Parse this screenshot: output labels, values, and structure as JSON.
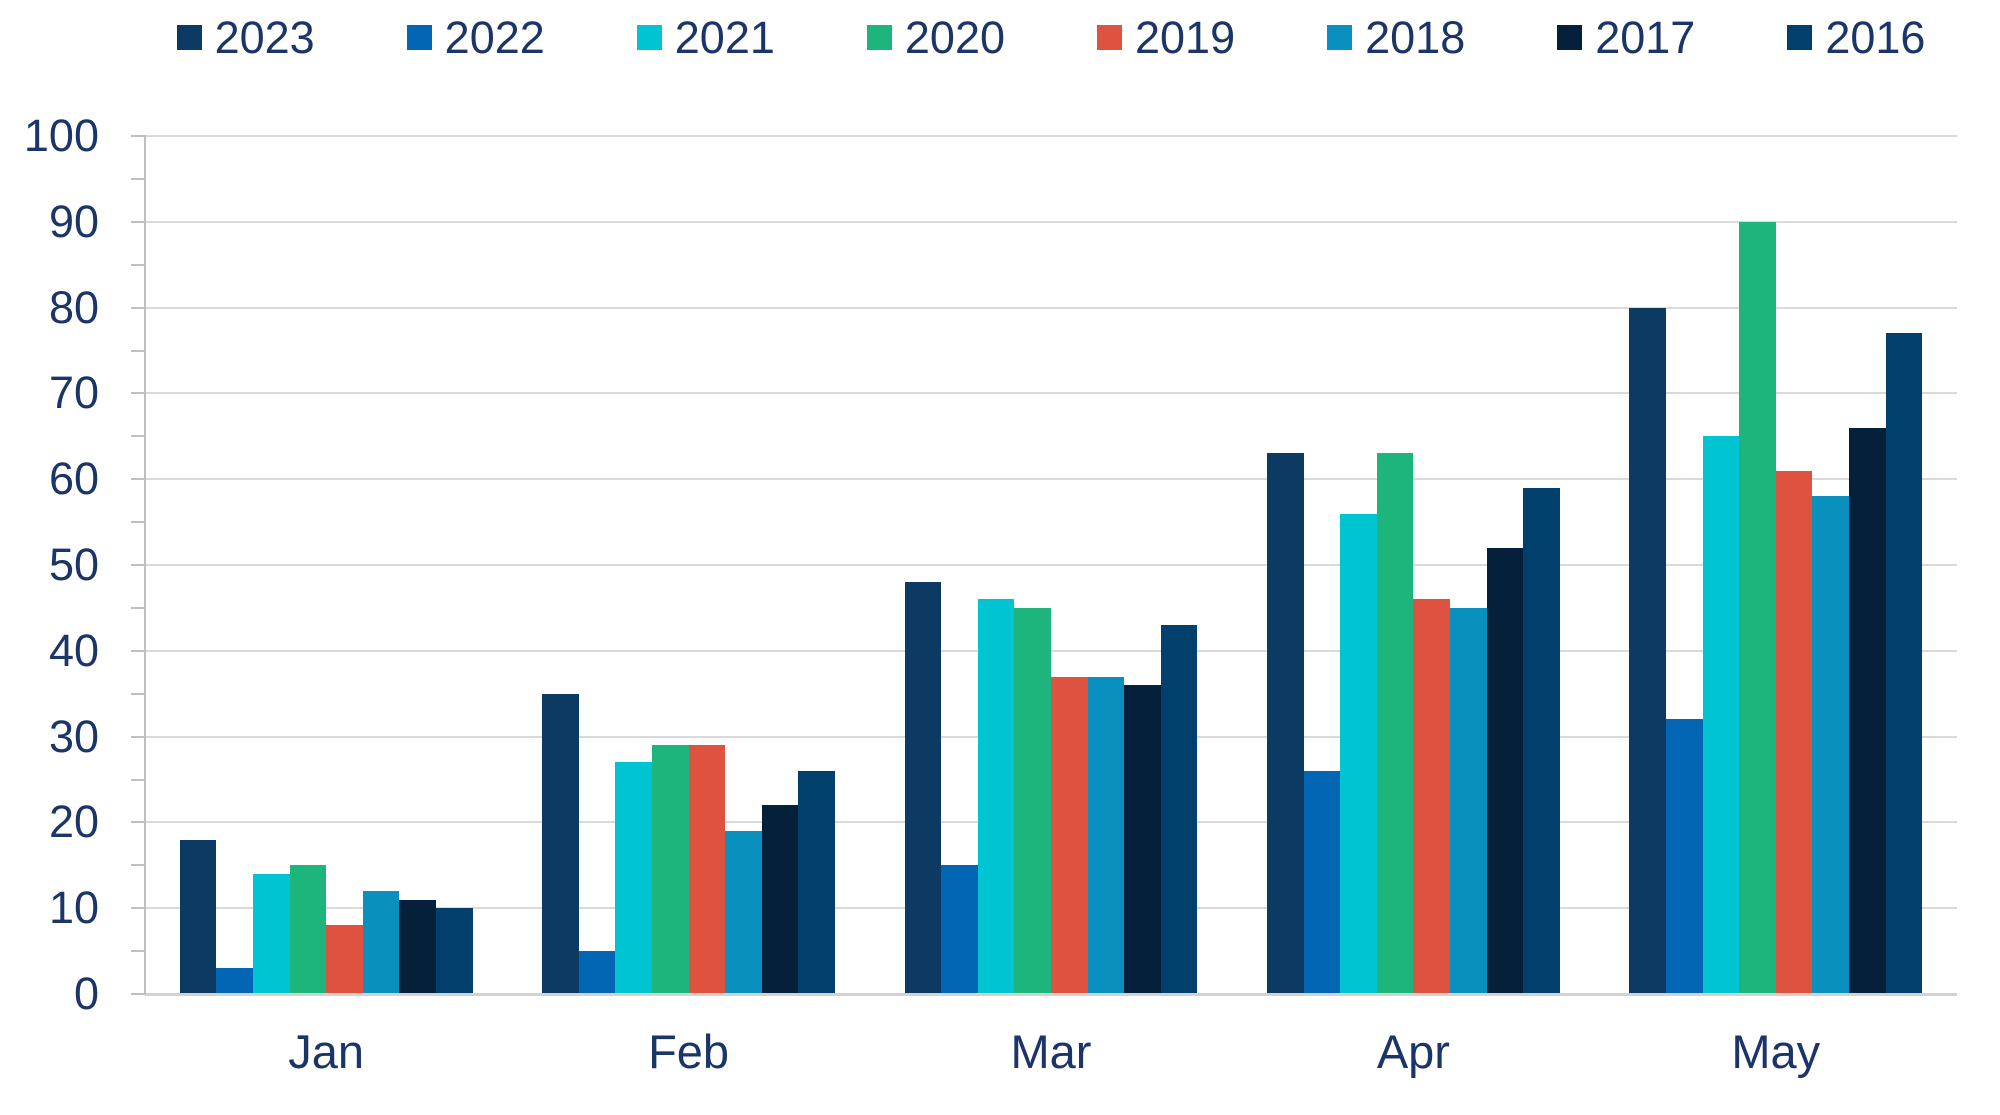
{
  "chart_data": {
    "type": "bar",
    "title": "",
    "xlabel": "",
    "ylabel": "",
    "categories": [
      "Jan",
      "Feb",
      "Mar",
      "Apr",
      "May"
    ],
    "series": [
      {
        "name": "2023",
        "color": "#0d3a62",
        "values": [
          18,
          35,
          48,
          63,
          80
        ]
      },
      {
        "name": "2022",
        "color": "#0366b4",
        "values": [
          3,
          5,
          15,
          26,
          32
        ]
      },
      {
        "name": "2021",
        "color": "#00c4d1",
        "values": [
          14,
          27,
          46,
          56,
          65
        ]
      },
      {
        "name": "2020",
        "color": "#1eb57d",
        "values": [
          15,
          29,
          45,
          63,
          90
        ]
      },
      {
        "name": "2019",
        "color": "#de5240",
        "values": [
          8,
          29,
          37,
          46,
          61
        ]
      },
      {
        "name": "2018",
        "color": "#0a90be",
        "values": [
          12,
          19,
          37,
          45,
          58
        ]
      },
      {
        "name": "2017",
        "color": "#05203a",
        "values": [
          11,
          22,
          36,
          52,
          66
        ]
      },
      {
        "name": "2016",
        "color": "#01406d",
        "values": [
          10,
          26,
          43,
          59,
          77
        ]
      }
    ],
    "ylim": [
      0,
      100
    ],
    "ytick_labels": [
      "0",
      "10",
      "20",
      "30",
      "40",
      "50",
      "60",
      "70",
      "80",
      "90",
      "100"
    ],
    "minor_tick_step": 5,
    "grid": "horizontal",
    "legend_position": "top"
  },
  "style": {
    "text_color": "#1b3569",
    "gridline_color": "#d9d9d9",
    "axis_color": "#bfbfbf",
    "baseline_color": "#d2d2d2",
    "background": "#ffffff"
  }
}
